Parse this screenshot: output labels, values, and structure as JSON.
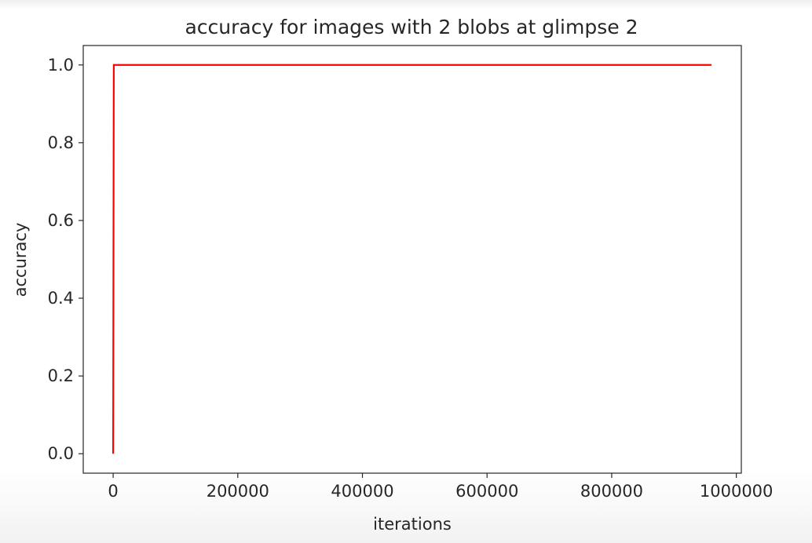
{
  "chart_data": {
    "type": "line",
    "title": "accuracy for images with 2 blobs at glimpse 2",
    "xlabel": "iterations",
    "ylabel": "accuracy",
    "xlim": [
      -48000,
      1008000
    ],
    "ylim": [
      -0.05,
      1.05
    ],
    "xticks": [
      0,
      200000,
      400000,
      600000,
      800000,
      1000000
    ],
    "xtick_labels": [
      "0",
      "200000",
      "400000",
      "600000",
      "800000",
      "1000000"
    ],
    "yticks": [
      0.0,
      0.2,
      0.4,
      0.6,
      0.8,
      1.0
    ],
    "ytick_labels": [
      "0.0",
      "0.2",
      "0.4",
      "0.6",
      "0.8",
      "1.0"
    ],
    "grid": false,
    "legend": false,
    "series": [
      {
        "color": "#ff0000",
        "x": [
          0,
          1000,
          960000
        ],
        "y": [
          0.0,
          1.0,
          1.0
        ]
      }
    ]
  }
}
